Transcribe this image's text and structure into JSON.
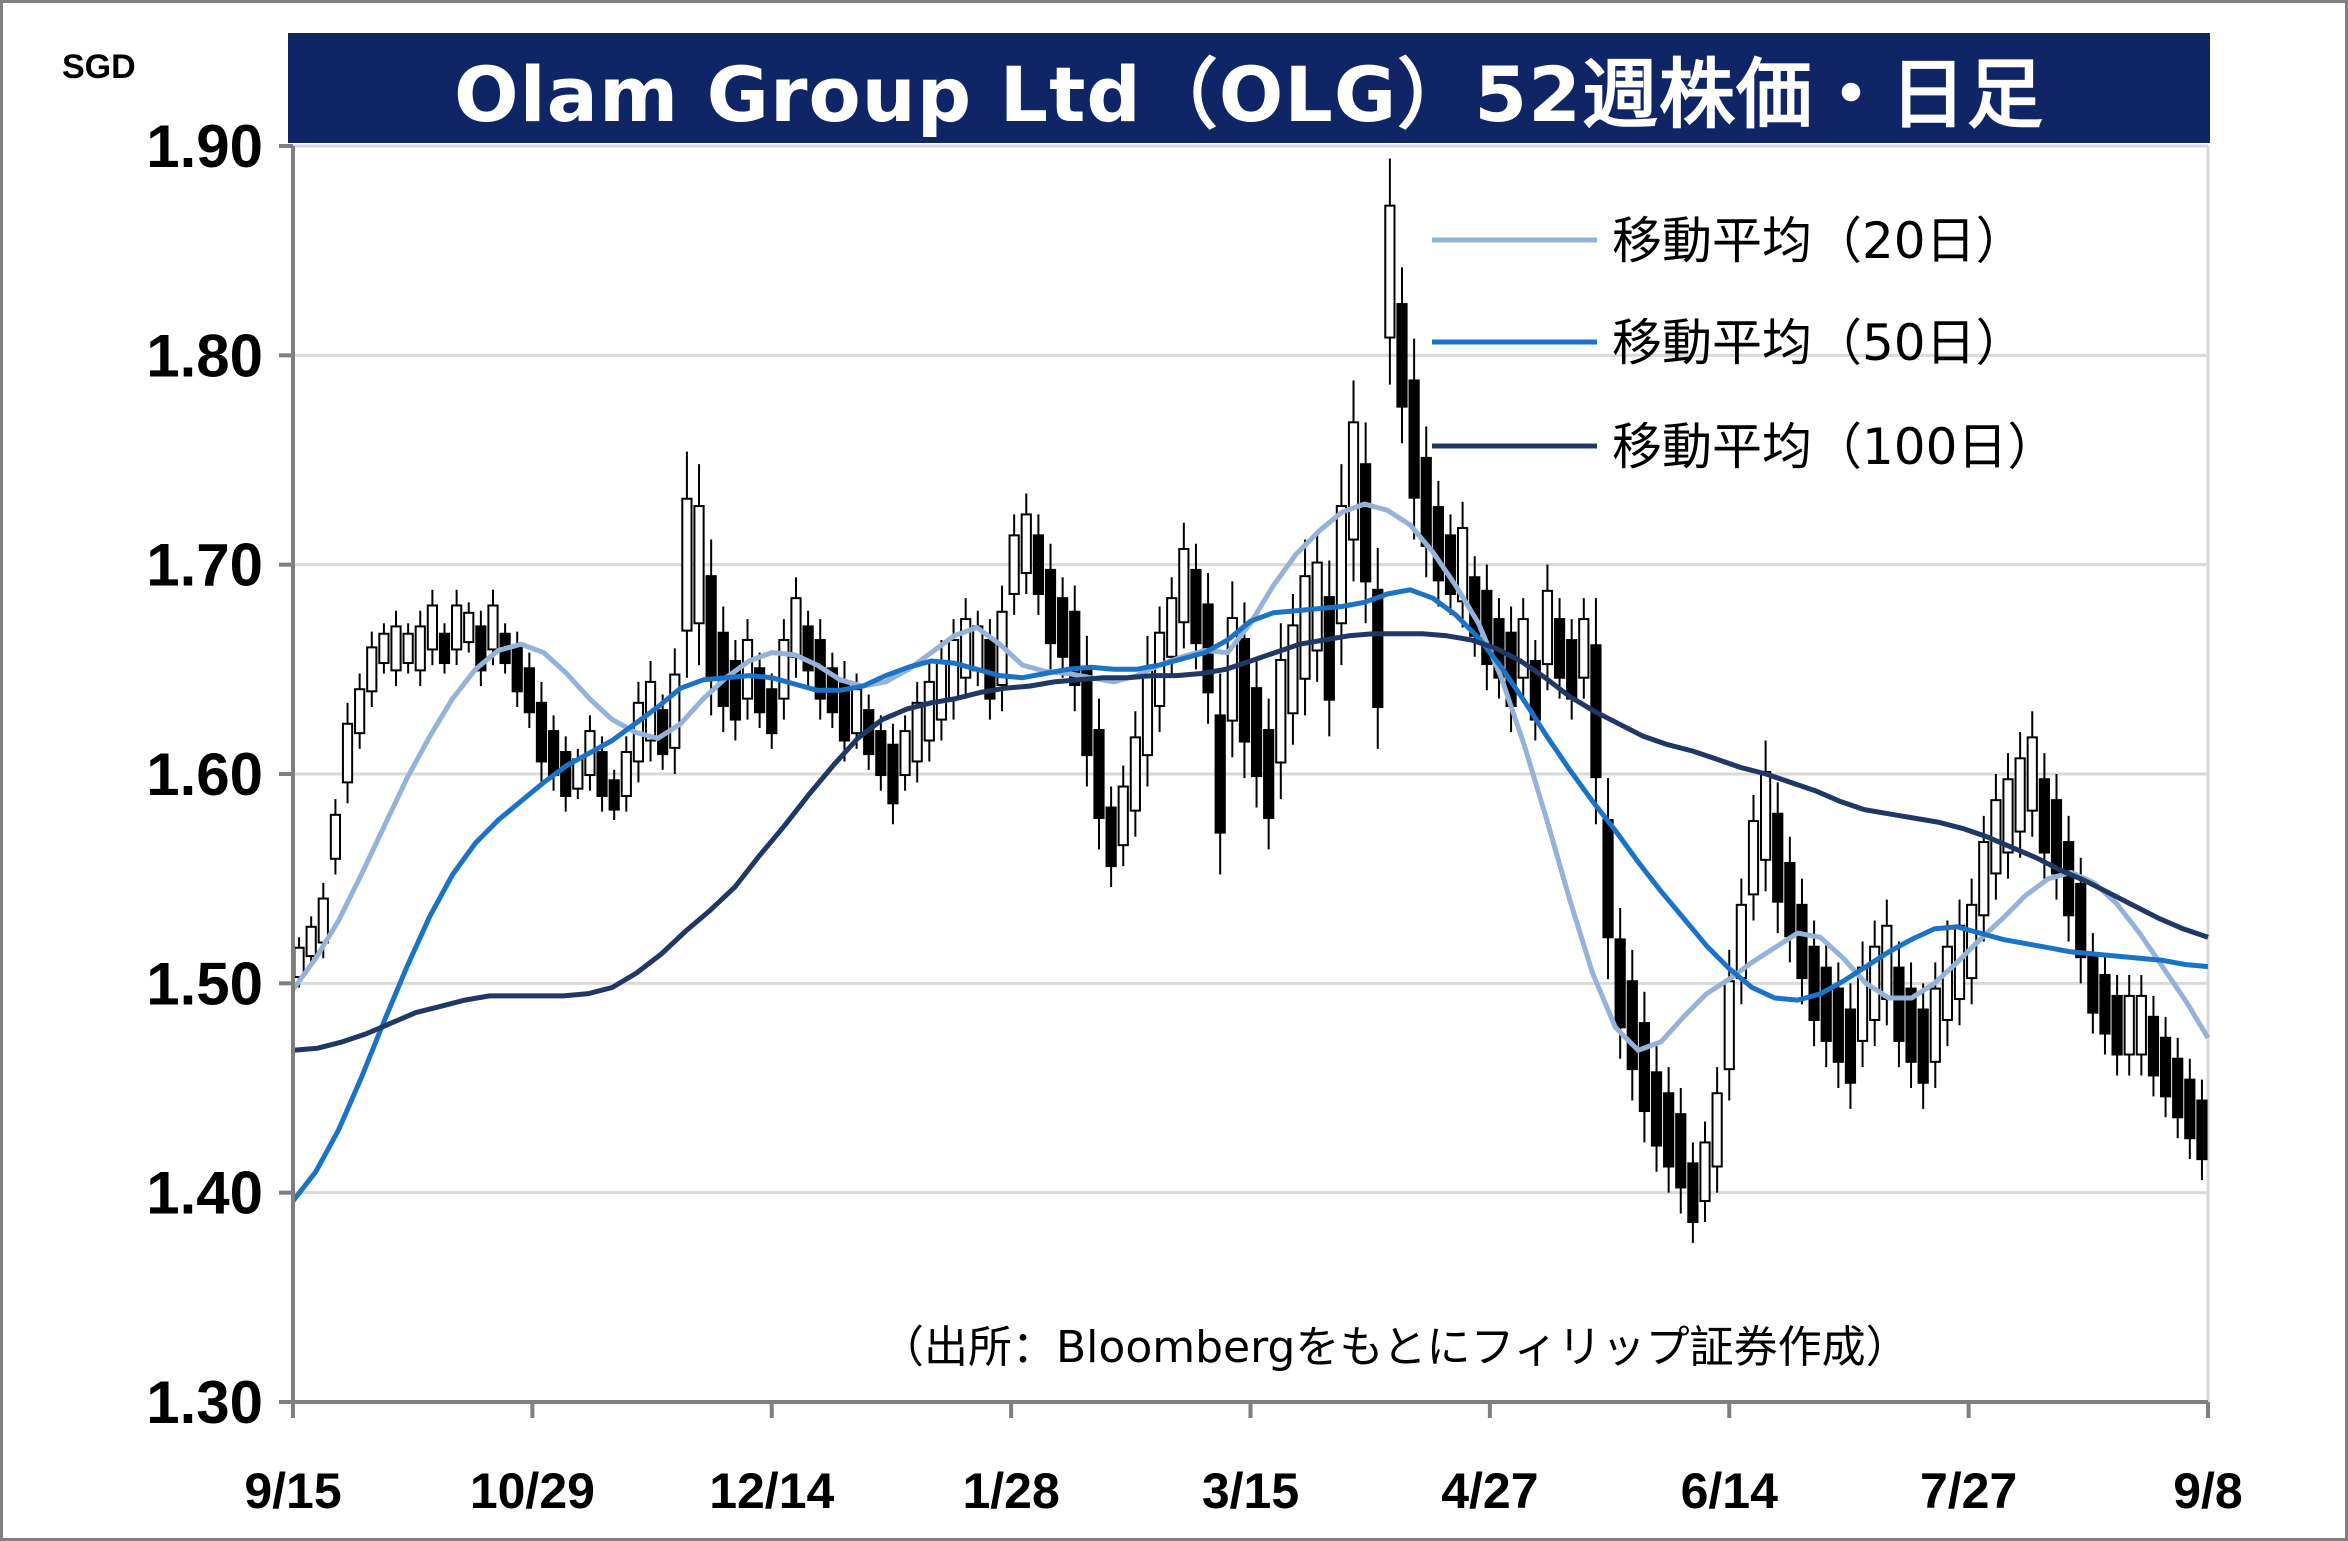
{
  "chart_data": {
    "type": "line",
    "title": "Olam Group Ltd（OLG）52週株価・日足",
    "unit": "SGD",
    "ylim": [
      1.3,
      1.9
    ],
    "y_ticks": [
      "1.90",
      "1.80",
      "1.70",
      "1.60",
      "1.50",
      "1.40",
      "1.30"
    ],
    "y_tick_values": [
      1.9,
      1.8,
      1.7,
      1.6,
      1.5,
      1.4,
      1.3
    ],
    "x_tick_labels": [
      "9/15",
      "10/29",
      "12/14",
      "1/28",
      "3/15",
      "4/27",
      "6/14",
      "7/27",
      "9/8"
    ],
    "grid": true,
    "legend_position": "top-right",
    "source_note": "（出所：Bloombergをもとにフィリップ証券作成）",
    "candles": {
      "mid_price": [
        1.51,
        1.52,
        1.53,
        1.57,
        1.61,
        1.63,
        1.65,
        1.66,
        1.66,
        1.66,
        1.66,
        1.67,
        1.66,
        1.67,
        1.67,
        1.66,
        1.67,
        1.66,
        1.65,
        1.64,
        1.62,
        1.61,
        1.6,
        1.6,
        1.61,
        1.6,
        1.59,
        1.6,
        1.62,
        1.63,
        1.62,
        1.63,
        1.7,
        1.7,
        1.67,
        1.65,
        1.64,
        1.65,
        1.64,
        1.63,
        1.65,
        1.67,
        1.66,
        1.65,
        1.64,
        1.63,
        1.63,
        1.62,
        1.61,
        1.6,
        1.61,
        1.62,
        1.63,
        1.64,
        1.65,
        1.66,
        1.66,
        1.65,
        1.66,
        1.7,
        1.71,
        1.7,
        1.68,
        1.67,
        1.66,
        1.63,
        1.6,
        1.57,
        1.58,
        1.6,
        1.63,
        1.65,
        1.67,
        1.69,
        1.68,
        1.66,
        1.6,
        1.65,
        1.64,
        1.62,
        1.6,
        1.63,
        1.65,
        1.67,
        1.68,
        1.66,
        1.7,
        1.74,
        1.72,
        1.66,
        1.84,
        1.8,
        1.76,
        1.73,
        1.71,
        1.7,
        1.7,
        1.68,
        1.67,
        1.66,
        1.65,
        1.66,
        1.64,
        1.67,
        1.66,
        1.65,
        1.66,
        1.63,
        1.55,
        1.5,
        1.48,
        1.46,
        1.44,
        1.43,
        1.42,
        1.4,
        1.41,
        1.43,
        1.48,
        1.52,
        1.56,
        1.58,
        1.56,
        1.54,
        1.52,
        1.5,
        1.49,
        1.48,
        1.47,
        1.49,
        1.5,
        1.51,
        1.49,
        1.48,
        1.47,
        1.48,
        1.5,
        1.51,
        1.52,
        1.55,
        1.57,
        1.58,
        1.59,
        1.6,
        1.58,
        1.57,
        1.55,
        1.53,
        1.5,
        1.49,
        1.48,
        1.48,
        1.48,
        1.47,
        1.46,
        1.45,
        1.44,
        1.43
      ],
      "range": [
        0.02,
        0.02,
        0.03,
        0.03,
        0.04,
        0.03,
        0.03,
        0.02,
        0.03,
        0.02,
        0.03,
        0.03,
        0.02,
        0.03,
        0.02,
        0.03,
        0.03,
        0.02,
        0.03,
        0.03,
        0.04,
        0.03,
        0.03,
        0.02,
        0.03,
        0.03,
        0.02,
        0.03,
        0.04,
        0.04,
        0.03,
        0.05,
        0.09,
        0.08,
        0.07,
        0.05,
        0.04,
        0.04,
        0.03,
        0.03,
        0.04,
        0.04,
        0.03,
        0.04,
        0.03,
        0.04,
        0.03,
        0.03,
        0.03,
        0.04,
        0.03,
        0.04,
        0.04,
        0.04,
        0.04,
        0.04,
        0.03,
        0.04,
        0.05,
        0.04,
        0.04,
        0.04,
        0.05,
        0.04,
        0.05,
        0.06,
        0.06,
        0.04,
        0.04,
        0.05,
        0.06,
        0.05,
        0.04,
        0.05,
        0.05,
        0.06,
        0.08,
        0.07,
        0.07,
        0.06,
        0.06,
        0.07,
        0.06,
        0.07,
        0.06,
        0.07,
        0.08,
        0.08,
        0.08,
        0.08,
        0.09,
        0.07,
        0.08,
        0.06,
        0.05,
        0.04,
        0.05,
        0.04,
        0.05,
        0.04,
        0.05,
        0.04,
        0.04,
        0.05,
        0.04,
        0.04,
        0.04,
        0.09,
        0.08,
        0.06,
        0.06,
        0.06,
        0.05,
        0.05,
        0.05,
        0.04,
        0.04,
        0.05,
        0.06,
        0.05,
        0.05,
        0.06,
        0.06,
        0.05,
        0.05,
        0.05,
        0.05,
        0.05,
        0.05,
        0.05,
        0.05,
        0.05,
        0.05,
        0.05,
        0.05,
        0.05,
        0.05,
        0.05,
        0.05,
        0.05,
        0.05,
        0.05,
        0.05,
        0.05,
        0.05,
        0.05,
        0.05,
        0.05,
        0.04,
        0.04,
        0.04,
        0.04,
        0.04,
        0.04,
        0.04,
        0.04,
        0.04,
        0.04
      ]
    },
    "series": [
      {
        "name": "移動平均（20日）",
        "color": "#95b3d7",
        "values": [
          1.497,
          1.512,
          1.53,
          1.552,
          1.575,
          1.598,
          1.618,
          1.636,
          1.65,
          1.659,
          1.662,
          1.658,
          1.648,
          1.636,
          1.626,
          1.62,
          1.617,
          1.624,
          1.636,
          1.646,
          1.654,
          1.658,
          1.657,
          1.652,
          1.645,
          1.642,
          1.644,
          1.65,
          1.658,
          1.666,
          1.67,
          1.662,
          1.652,
          1.649,
          1.648,
          1.646,
          1.644,
          1.647,
          1.652,
          1.656,
          1.659,
          1.658,
          1.672,
          1.69,
          1.705,
          1.716,
          1.725,
          1.729,
          1.726,
          1.719,
          1.706,
          1.69,
          1.672,
          1.646,
          1.614,
          1.578,
          1.54,
          1.505,
          1.479,
          1.468,
          1.472,
          1.484,
          1.495,
          1.502,
          1.51,
          1.517,
          1.524,
          1.522,
          1.512,
          1.5,
          1.493,
          1.493,
          1.5,
          1.51,
          1.521,
          1.531,
          1.542,
          1.55,
          1.553,
          1.548,
          1.538,
          1.524,
          1.508,
          1.492,
          1.474
        ]
      },
      {
        "name": "移動平均（50日）",
        "color": "#1a73c6",
        "values": [
          1.396,
          1.41,
          1.43,
          1.455,
          1.482,
          1.508,
          1.532,
          1.552,
          1.567,
          1.578,
          1.587,
          1.596,
          1.604,
          1.61,
          1.616,
          1.624,
          1.632,
          1.641,
          1.645,
          1.646,
          1.647,
          1.646,
          1.643,
          1.64,
          1.64,
          1.642,
          1.647,
          1.651,
          1.654,
          1.653,
          1.65,
          1.647,
          1.646,
          1.648,
          1.65,
          1.651,
          1.65,
          1.65,
          1.652,
          1.655,
          1.658,
          1.664,
          1.673,
          1.677,
          1.678,
          1.679,
          1.68,
          1.682,
          1.686,
          1.688,
          1.684,
          1.676,
          1.665,
          1.651,
          1.635,
          1.618,
          1.602,
          1.587,
          1.573,
          1.558,
          1.544,
          1.531,
          1.518,
          1.507,
          1.498,
          1.493,
          1.492,
          1.495,
          1.501,
          1.508,
          1.515,
          1.521,
          1.526,
          1.527,
          1.524,
          1.521,
          1.519,
          1.517,
          1.515,
          1.514,
          1.513,
          1.512,
          1.511,
          1.509,
          1.508
        ]
      },
      {
        "name": "移動平均（100日）",
        "color": "#1f3864",
        "values": [
          1.468,
          1.469,
          1.472,
          1.476,
          1.481,
          1.486,
          1.489,
          1.492,
          1.494,
          1.494,
          1.494,
          1.494,
          1.495,
          1.498,
          1.505,
          1.514,
          1.525,
          1.535,
          1.546,
          1.561,
          1.575,
          1.59,
          1.604,
          1.617,
          1.626,
          1.631,
          1.634,
          1.636,
          1.639,
          1.641,
          1.642,
          1.644,
          1.645,
          1.646,
          1.646,
          1.647,
          1.647,
          1.648,
          1.65,
          1.654,
          1.658,
          1.662,
          1.664,
          1.666,
          1.667,
          1.667,
          1.667,
          1.666,
          1.664,
          1.66,
          1.654,
          1.646,
          1.637,
          1.63,
          1.624,
          1.618,
          1.614,
          1.611,
          1.607,
          1.603,
          1.6,
          1.596,
          1.592,
          1.587,
          1.583,
          1.581,
          1.579,
          1.577,
          1.574,
          1.57,
          1.565,
          1.56,
          1.554,
          1.549,
          1.543,
          1.537,
          1.531,
          1.526,
          1.522
        ]
      }
    ]
  }
}
